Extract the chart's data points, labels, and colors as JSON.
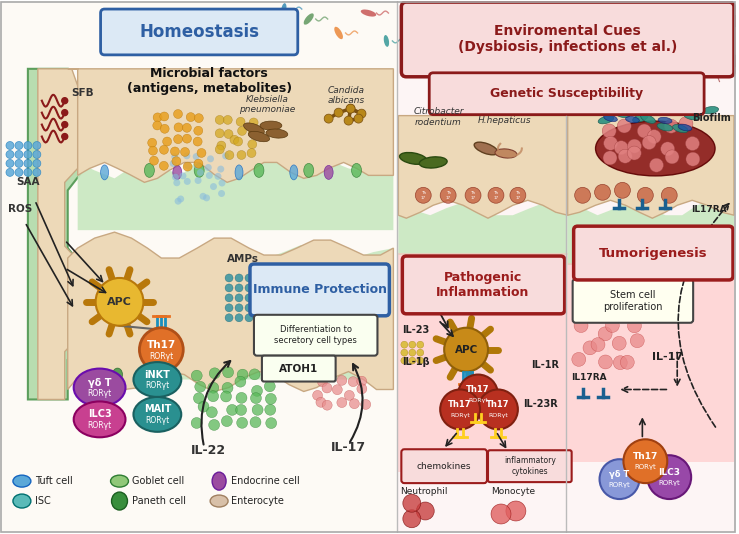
{
  "homeostasis_label": "Homeostasis",
  "env_cues_label": "Enviromental Cues\n(Dysbiosis, infections et al.)",
  "genetic_label": "Genetic Susceptibility",
  "immune_protection_label": "Immune Protection",
  "pathogenic_label": "Pathogenic\nInflammation",
  "tumorigenesis_label": "Tumorigenesis",
  "microbial_label": "Microbial factors\n(antigens, metabolites)",
  "sfb_label": "SFB",
  "saa_label": "SAA",
  "ros_label": "ROS",
  "apc_label": "APC",
  "il22_label": "IL-22",
  "il17_label": "IL-17",
  "amps_label": "AMPs",
  "diff_label": "Differentiation to\nsecretory cell types",
  "atoh1_label": "ATOH1",
  "klebsiella_label": "Klebsiella\npneumoniae",
  "candida_label": "Candida\nalbicans",
  "citrobacter_label": "Citrobacter\nrodentium",
  "hhepaticus_label": "H.hepaticus",
  "biofilm_label": "Biofilm",
  "il23_label": "IL-23",
  "il1b_label": "IL-1β",
  "il1r_label": "IL-1R",
  "il23r_label": "IL-23R",
  "il17ra_label": "IL17RA",
  "stemcell_label": "Stem cell\nproliferation",
  "chemokines_label": "chemokines",
  "inflammatory_label": "inflammatory\ncytokines",
  "neutrophil_label": "Neutrophil",
  "monocyte_label": "Monocyte",
  "tuft_label": "Tuft cell",
  "goblet_label": "Goblet cell",
  "endocrine_label": "Endocrine cell",
  "isc_label": "ISC",
  "paneth_label": "Paneth cell",
  "enterocyte_label": "Enterocyte",
  "homeostasis_box_bg": "#DCE9F5",
  "homeostasis_box_border": "#2E5FA3",
  "env_cues_box_bg": "#F8DCDC",
  "env_cues_box_border": "#8B1A1A",
  "genetic_box_bg": "#F8DCDC",
  "genetic_box_border": "#8B1A1A",
  "immune_box_bg": "#DCE9F5",
  "immune_box_border": "#2E5FA3",
  "pathogenic_box_bg": "#F8DCDC",
  "pathogenic_box_border": "#9B1C1C",
  "tumor_box_bg": "#F8DCDC",
  "tumor_box_border": "#9B1C1C",
  "intestine_fill": "#EDD9B8",
  "intestine_border": "#C8A882",
  "green_lining": "#B8DDB0",
  "green_border": "#5C9E5C",
  "left_bg": "#FDFAF5",
  "right_bg": "#FDF5F5",
  "apc_fill": "#D4920A",
  "apc_spike": "#B8780A",
  "th17_fill": "#C94A1A",
  "dark_red": "#8B1A1A",
  "medium_red": "#9B1C1C",
  "arrow_color": "#222222",
  "purple_fill": "#9B4BA0",
  "teal_fill": "#2A8A8A",
  "pink_fill": "#C94090",
  "orange_fill": "#D4820A",
  "blue_dot": "#5BA8D8",
  "orange_dot": "#E8A020",
  "green_dot": "#5AB85A",
  "pink_dot": "#E89090"
}
